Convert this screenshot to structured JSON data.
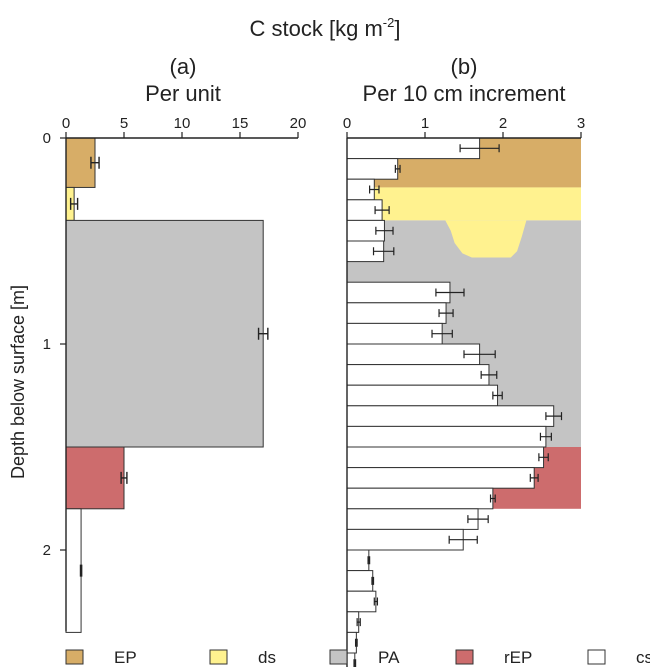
{
  "title": "C stock [kg m",
  "title_sup": "-2",
  "title_end": "]",
  "ylabel": "Depth below surface [m]",
  "colors": {
    "EP": "#d7ad67",
    "ds": "#fff28f",
    "PA": "#c4c4c4",
    "rEP": "#cd6c6d",
    "cs": "#ffffff",
    "axis": "#222222",
    "bar_edge": "#333333"
  },
  "legend": [
    {
      "key": "EP",
      "label": "EP"
    },
    {
      "key": "ds",
      "label": "ds"
    },
    {
      "key": "PA",
      "label": "PA"
    },
    {
      "key": "rEP",
      "label": "rEP"
    },
    {
      "key": "cs",
      "label": "cs"
    }
  ],
  "y_ticks": [
    {
      "value": 0,
      "label": "0"
    },
    {
      "value": 1,
      "label": "1"
    },
    {
      "value": 2,
      "label": "2"
    }
  ],
  "chart_data": [
    {
      "panel": "a",
      "letter": "(a)",
      "subtitle": "Per unit",
      "type": "bar",
      "orientation": "horizontal",
      "xlim": [
        0,
        20
      ],
      "ylim": [
        0,
        2.4
      ],
      "x_ticks": [
        {
          "value": 0,
          "label": "0"
        },
        {
          "value": 5,
          "label": "5"
        },
        {
          "value": 10,
          "label": "10"
        },
        {
          "value": 15,
          "label": "15"
        },
        {
          "value": 20,
          "label": "20"
        }
      ],
      "bars": [
        {
          "unit": "EP",
          "top": 0.0,
          "bottom": 0.24,
          "value": 2.5,
          "err": 0.35
        },
        {
          "unit": "ds",
          "top": 0.24,
          "bottom": 0.4,
          "value": 0.7,
          "err": 0.3
        },
        {
          "unit": "PA",
          "top": 0.4,
          "bottom": 1.5,
          "value": 17.0,
          "err": 0.4
        },
        {
          "unit": "rEP",
          "top": 1.5,
          "bottom": 1.8,
          "value": 5.0,
          "err": 0.25
        },
        {
          "unit": "cs",
          "top": 1.8,
          "bottom": 2.4,
          "value": 1.3,
          "err": 0.05
        }
      ]
    },
    {
      "panel": "b",
      "letter": "(b)",
      "subtitle": "Per 10 cm increment",
      "type": "bar",
      "orientation": "horizontal",
      "xlim": [
        0,
        3
      ],
      "ylim": [
        0,
        2.4
      ],
      "x_ticks": [
        {
          "value": 0,
          "label": "0"
        },
        {
          "value": 1,
          "label": "1"
        },
        {
          "value": 2,
          "label": "2"
        },
        {
          "value": 3,
          "label": "3"
        }
      ],
      "unit_bands": [
        {
          "unit": "EP",
          "top": 0.0,
          "bottom": 0.24
        },
        {
          "unit": "ds",
          "top": 0.24,
          "bottom": 0.4
        },
        {
          "unit": "PA",
          "top": 0.4,
          "bottom": 1.5
        },
        {
          "unit": "rEP",
          "top": 1.5,
          "bottom": 1.8
        }
      ],
      "ds_pocket": [
        {
          "x": 1.26,
          "depth": 0.4
        },
        {
          "x": 1.33,
          "depth": 0.45
        },
        {
          "x": 1.38,
          "depth": 0.51
        },
        {
          "x": 1.48,
          "depth": 0.56
        },
        {
          "x": 1.6,
          "depth": 0.58
        },
        {
          "x": 2.1,
          "depth": 0.58
        },
        {
          "x": 2.18,
          "depth": 0.55
        },
        {
          "x": 2.24,
          "depth": 0.48
        },
        {
          "x": 2.3,
          "depth": 0.4
        }
      ],
      "increments": [
        {
          "top": 0.0,
          "bottom": 0.1,
          "value": 1.7,
          "err": 0.25
        },
        {
          "top": 0.1,
          "bottom": 0.2,
          "value": 0.65,
          "err": 0.03
        },
        {
          "top": 0.2,
          "bottom": 0.3,
          "value": 0.35,
          "err": 0.06
        },
        {
          "top": 0.3,
          "bottom": 0.4,
          "value": 0.45,
          "err": 0.09
        },
        {
          "top": 0.4,
          "bottom": 0.5,
          "value": 0.48,
          "err": 0.11
        },
        {
          "top": 0.5,
          "bottom": 0.6,
          "value": 0.47,
          "err": 0.13
        },
        {
          "top": 0.6,
          "bottom": 0.7,
          "value": 0.0,
          "err": 0
        },
        {
          "top": 0.7,
          "bottom": 0.8,
          "value": 1.32,
          "err": 0.18
        },
        {
          "top": 0.8,
          "bottom": 0.9,
          "value": 1.27,
          "err": 0.09
        },
        {
          "top": 0.9,
          "bottom": 1.0,
          "value": 1.22,
          "err": 0.13
        },
        {
          "top": 1.0,
          "bottom": 1.1,
          "value": 1.7,
          "err": 0.2
        },
        {
          "top": 1.1,
          "bottom": 1.2,
          "value": 1.82,
          "err": 0.1
        },
        {
          "top": 1.2,
          "bottom": 1.3,
          "value": 1.93,
          "err": 0.06
        },
        {
          "top": 1.3,
          "bottom": 1.4,
          "value": 2.65,
          "err": 0.1
        },
        {
          "top": 1.4,
          "bottom": 1.5,
          "value": 2.55,
          "err": 0.07
        },
        {
          "top": 1.5,
          "bottom": 1.6,
          "value": 2.52,
          "err": 0.06
        },
        {
          "top": 1.6,
          "bottom": 1.7,
          "value": 2.4,
          "err": 0.05
        },
        {
          "top": 1.7,
          "bottom": 1.8,
          "value": 1.87,
          "err": 0.03
        },
        {
          "top": 1.8,
          "bottom": 1.9,
          "value": 1.68,
          "err": 0.13
        },
        {
          "top": 1.9,
          "bottom": 2.0,
          "value": 1.49,
          "err": 0.18
        },
        {
          "top": 2.0,
          "bottom": 2.1,
          "value": 0.28,
          "err": 0.01
        },
        {
          "top": 2.1,
          "bottom": 2.2,
          "value": 0.33,
          "err": 0.01
        },
        {
          "top": 2.2,
          "bottom": 2.3,
          "value": 0.37,
          "err": 0.02
        },
        {
          "top": 2.3,
          "bottom": 2.4,
          "value": 0.15,
          "err": 0.02
        },
        {
          "top": 2.4,
          "bottom": 2.5,
          "value": 0.12,
          "err": 0.01
        },
        {
          "top": 2.5,
          "bottom": 2.6,
          "value": 0.1,
          "err": 0.01
        },
        {
          "top": 2.6,
          "bottom": 2.7,
          "value": 0.09,
          "err": 0.01
        }
      ]
    }
  ]
}
